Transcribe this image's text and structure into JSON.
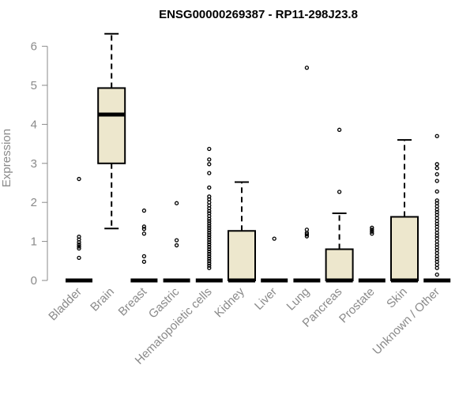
{
  "chart_data": {
    "type": "boxplot",
    "title": "ENSG00000269387 - RP11-298J23.8",
    "ylabel": "Expression",
    "xlabel": "",
    "ylim": [
      0,
      6.3
    ],
    "yticks": [
      0,
      1,
      2,
      3,
      4,
      5,
      6
    ],
    "box_fill": "#ede7cd",
    "box_stroke": "#000000",
    "categories": [
      "Bladder",
      "Brain",
      "Breast",
      "Gastric",
      "Hematopoietic cells",
      "Kidney",
      "Liver",
      "Lung",
      "Pancreas",
      "Prostate",
      "Skin",
      "Unknown / Other"
    ],
    "boxes": [
      {
        "category": "Bladder",
        "min": 0,
        "q1": 0,
        "median": 0,
        "q3": 0,
        "max": 0,
        "outliers": [
          2.6,
          1.12,
          1.05,
          0.98,
          0.92,
          0.87,
          0.82,
          0.58
        ]
      },
      {
        "category": "Brain",
        "min": 1.33,
        "q1": 3.0,
        "median": 4.25,
        "q3": 4.93,
        "max": 6.32,
        "outliers": []
      },
      {
        "category": "Breast",
        "min": 0,
        "q1": 0,
        "median": 0,
        "q3": 0,
        "max": 0,
        "outliers": [
          1.79,
          1.38,
          1.32,
          1.2,
          0.62,
          0.48
        ]
      },
      {
        "category": "Gastric",
        "min": 0,
        "q1": 0,
        "median": 0,
        "q3": 0,
        "max": 0,
        "outliers": [
          1.98,
          1.03,
          0.9
        ]
      },
      {
        "category": "Hematopoietic cells",
        "min": 0,
        "q1": 0,
        "median": 0,
        "q3": 0,
        "max": 0,
        "outliers": [
          3.37,
          3.1,
          2.98,
          2.75,
          2.38,
          2.15,
          2.08,
          2.0,
          1.92,
          1.85,
          1.78,
          1.72,
          1.65,
          1.58,
          1.52,
          1.46,
          1.4,
          1.34,
          1.28,
          1.22,
          1.16,
          1.1,
          1.04,
          0.98,
          0.92,
          0.86,
          0.8,
          0.74,
          0.68,
          0.62,
          0.56,
          0.5,
          0.44,
          0.38,
          0.32
        ]
      },
      {
        "category": "Kidney",
        "min": 0,
        "q1": 0,
        "median": 0,
        "q3": 1.27,
        "max": 2.52,
        "outliers": []
      },
      {
        "category": "Liver",
        "min": 0,
        "q1": 0,
        "median": 0,
        "q3": 0,
        "max": 0,
        "outliers": [
          1.07
        ]
      },
      {
        "category": "Lung",
        "min": 0,
        "q1": 0,
        "median": 0,
        "q3": 0,
        "max": 0,
        "outliers": [
          5.45,
          1.3,
          1.22,
          1.18,
          1.13
        ]
      },
      {
        "category": "Pancreas",
        "min": 0,
        "q1": 0,
        "median": 0,
        "q3": 0.8,
        "max": 1.72,
        "outliers": [
          3.86,
          2.27
        ]
      },
      {
        "category": "Prostate",
        "min": 0,
        "q1": 0,
        "median": 0,
        "q3": 0,
        "max": 0,
        "outliers": [
          1.35,
          1.3,
          1.25,
          1.2
        ]
      },
      {
        "category": "Skin",
        "min": 0,
        "q1": 0,
        "median": 0,
        "q3": 1.63,
        "max": 3.6,
        "outliers": []
      },
      {
        "category": "Unknown / Other",
        "min": 0,
        "q1": 0,
        "median": 0,
        "q3": 0,
        "max": 0,
        "outliers": [
          3.7,
          2.98,
          2.88,
          2.72,
          2.55,
          2.28,
          2.05,
          1.98,
          1.9,
          1.82,
          1.75,
          1.68,
          1.6,
          1.52,
          1.45,
          1.38,
          1.3,
          1.22,
          1.15,
          1.08,
          1.0,
          0.92,
          0.85,
          0.78,
          0.7,
          0.62,
          0.55,
          0.48,
          0.4,
          0.32,
          0.15
        ]
      }
    ]
  }
}
